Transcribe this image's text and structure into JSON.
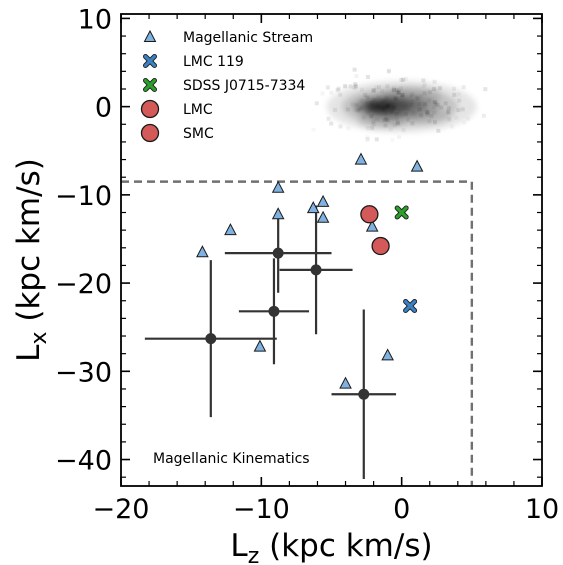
{
  "chart_data": {
    "type": "scatter",
    "xlabel": "L_z (kpc km/s)",
    "ylabel": "L_x (kpc km/s)",
    "xlim": [
      -20,
      10
    ],
    "ylim": [
      -43,
      10.5
    ],
    "xticks": [
      -20,
      -10,
      0,
      10
    ],
    "yticks": [
      10,
      0,
      -10,
      -20,
      -30,
      -40
    ],
    "x_tick_labels": [
      "−20",
      "−10",
      "0",
      "10"
    ],
    "y_tick_labels": [
      "10",
      "0",
      "−10",
      "−20",
      "−30",
      "−40"
    ],
    "grid": false,
    "legend_placement": "top-left",
    "legend": [
      {
        "label": "Magellanic Stream",
        "marker": "triangle",
        "color": "#7fb2e0"
      },
      {
        "label": "LMC 119",
        "marker": "x",
        "color": "#3a82c4"
      },
      {
        "label": "SDSS J0715-7334",
        "marker": "x",
        "color": "#2ca02c"
      },
      {
        "label": "LMC",
        "marker": "circle",
        "color": "#d45a5a"
      },
      {
        "label": "SMC",
        "marker": "circle",
        "color": "#d45a5a"
      }
    ],
    "annotation": "Magellanic Kinematics",
    "region": {
      "x_max": 5,
      "y_max": -8.5,
      "style": "dashed",
      "color": "#707070"
    },
    "density_cloud": {
      "center_x": 0,
      "center_y": 0,
      "color": "gray"
    },
    "series": [
      {
        "name": "Magellanic Stream",
        "marker": "triangle",
        "color": "#7fb2e0",
        "points": [
          {
            "x": -14.2,
            "y": -16.5
          },
          {
            "x": -12.2,
            "y": -14.0
          },
          {
            "x": -10.1,
            "y": -27.2
          },
          {
            "x": -8.8,
            "y": -9.2
          },
          {
            "x": -8.8,
            "y": -12.2
          },
          {
            "x": -6.3,
            "y": -11.5
          },
          {
            "x": -5.6,
            "y": -10.8
          },
          {
            "x": -5.6,
            "y": -12.6
          },
          {
            "x": -4.0,
            "y": -31.4
          },
          {
            "x": -2.9,
            "y": -6.0
          },
          {
            "x": -2.1,
            "y": -13.6
          },
          {
            "x": -1.0,
            "y": -28.2
          },
          {
            "x": 1.1,
            "y": -6.8
          }
        ]
      },
      {
        "name": "LMC 119",
        "marker": "x",
        "color": "#3a82c4",
        "points": [
          {
            "x": 0.6,
            "y": -22.6
          }
        ]
      },
      {
        "name": "SDSS J0715-7334",
        "marker": "x",
        "color": "#2ca02c",
        "points": [
          {
            "x": 0.0,
            "y": -12.0
          }
        ]
      },
      {
        "name": "LMC",
        "marker": "circle",
        "color": "#d45a5a",
        "points": [
          {
            "x": -2.3,
            "y": -12.2
          }
        ]
      },
      {
        "name": "SMC",
        "marker": "circle",
        "color": "#d45a5a",
        "points": [
          {
            "x": -1.5,
            "y": -15.8
          }
        ]
      },
      {
        "name": "",
        "marker": "errorbar-circle",
        "color": "#333333",
        "points": [
          {
            "x": -13.6,
            "y": -26.3,
            "xerr": 4.7,
            "yerr": 8.9
          },
          {
            "x": -9.1,
            "y": -23.2,
            "xerr": 2.5,
            "yerr": 6.0
          },
          {
            "x": -8.8,
            "y": -16.6,
            "xerr": 3.8,
            "yerr": 4.5
          },
          {
            "x": -6.1,
            "y": -18.5,
            "xerr": 2.6,
            "yerr": 7.3
          },
          {
            "x": -2.7,
            "y": -32.6,
            "xerr": 2.3,
            "yerr": 9.6
          }
        ]
      }
    ]
  }
}
